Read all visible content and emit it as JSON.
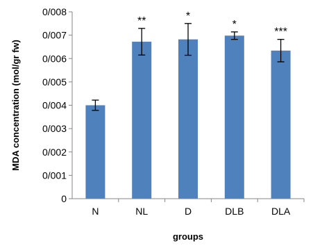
{
  "chart_data": {
    "type": "bar",
    "title": "",
    "xlabel": "groups",
    "ylabel": "MDA concentration (mol/gr fw)",
    "categories": [
      "N",
      "NL",
      "D",
      "DLB",
      "DLA"
    ],
    "values": [
      0.004,
      0.00672,
      0.00682,
      0.00698,
      0.00634
    ],
    "errors": [
      0.00022,
      0.00057,
      0.00068,
      0.00016,
      0.00048
    ],
    "significance": [
      "",
      "**",
      "*",
      "*",
      "***"
    ],
    "ylim": [
      0,
      0.008
    ],
    "yticks": [
      "0",
      "0/001",
      "0/002",
      "0/003",
      "0/004",
      "0/005",
      "0/006",
      "0/007",
      "0/008"
    ],
    "grid": false,
    "legend": "none",
    "bar_color": "#4F81BD",
    "error_bar_color": "#000000"
  }
}
